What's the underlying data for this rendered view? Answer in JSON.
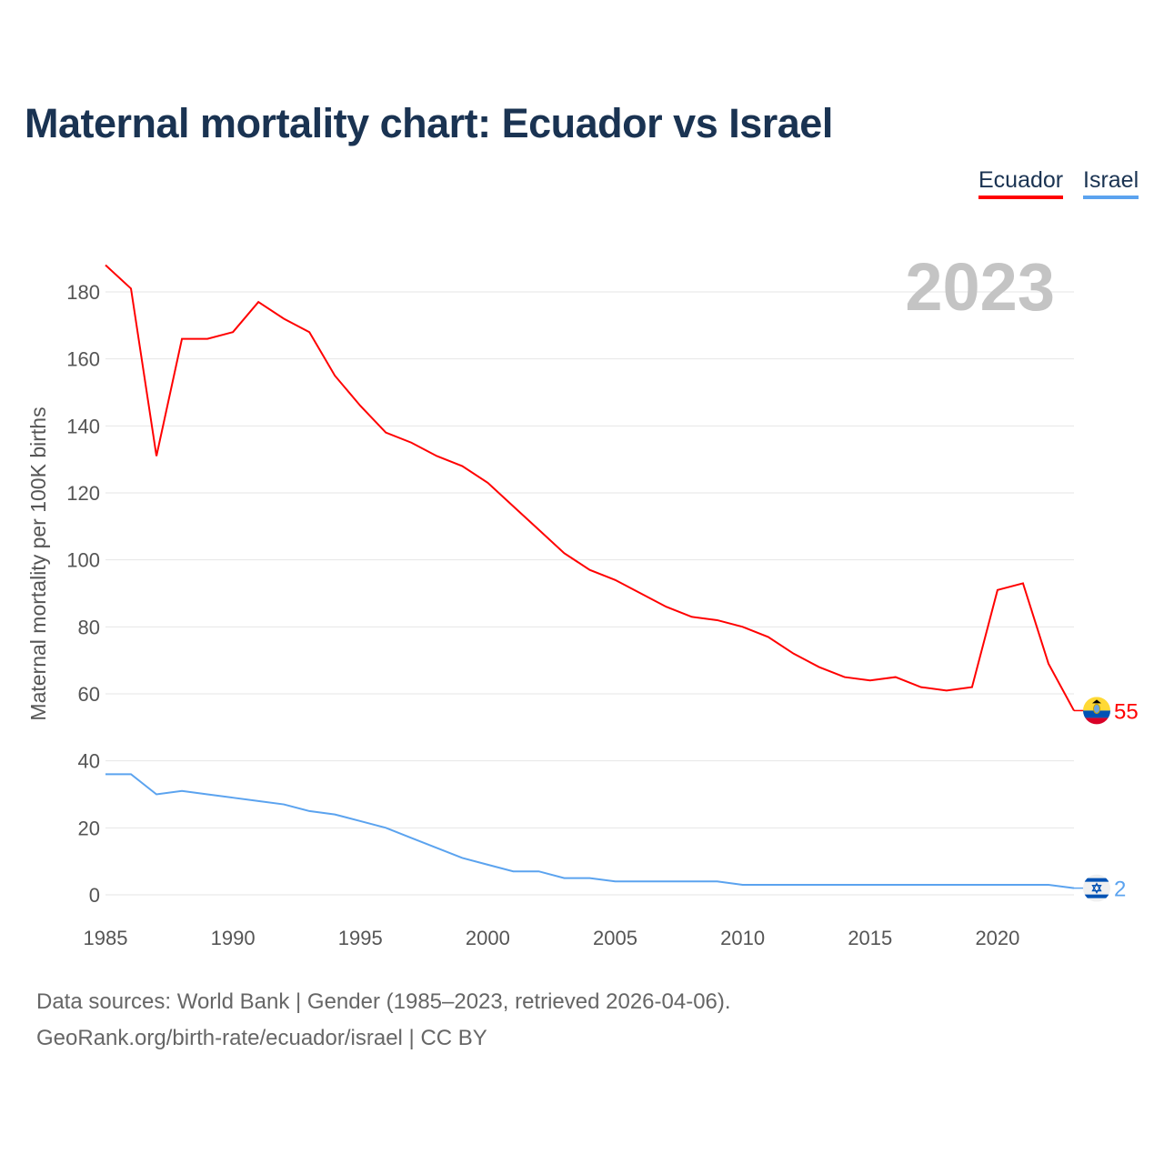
{
  "chart_data": {
    "type": "line",
    "title": "Maternal mortality chart: Ecuador vs Israel",
    "ylabel": "Maternal mortality per 100K births",
    "xlabel": "",
    "year_label": "2023",
    "xlim": [
      1985,
      2023
    ],
    "ylim": [
      0,
      190
    ],
    "x_ticks": [
      1985,
      1990,
      1995,
      2000,
      2005,
      2010,
      2015,
      2020
    ],
    "y_ticks": [
      0,
      20,
      40,
      60,
      80,
      100,
      120,
      140,
      160,
      180
    ],
    "grid": true,
    "legend": "top-right",
    "x": [
      1985,
      1986,
      1987,
      1988,
      1989,
      1990,
      1991,
      1992,
      1993,
      1994,
      1995,
      1996,
      1997,
      1998,
      1999,
      2000,
      2001,
      2002,
      2003,
      2004,
      2005,
      2006,
      2007,
      2008,
      2009,
      2010,
      2011,
      2012,
      2013,
      2014,
      2015,
      2016,
      2017,
      2018,
      2019,
      2020,
      2021,
      2022,
      2023
    ],
    "series": [
      {
        "name": "Ecuador",
        "color": "#ff0000",
        "end_label": "55",
        "flag": "ecuador-flag",
        "values": [
          188,
          181,
          131,
          166,
          166,
          168,
          177,
          172,
          168,
          155,
          146,
          138,
          135,
          131,
          128,
          123,
          116,
          109,
          102,
          97,
          94,
          90,
          86,
          83,
          82,
          80,
          77,
          72,
          68,
          65,
          64,
          65,
          62,
          61,
          62,
          91,
          93,
          69,
          55
        ]
      },
      {
        "name": "Israel",
        "color": "#5ba3ef",
        "end_label": "2",
        "flag": "israel-flag",
        "values": [
          36,
          36,
          30,
          31,
          30,
          29,
          28,
          27,
          25,
          24,
          22,
          20,
          17,
          14,
          11,
          9,
          7,
          7,
          5,
          5,
          4,
          4,
          4,
          4,
          4,
          3,
          3,
          3,
          3,
          3,
          3,
          3,
          3,
          3,
          3,
          3,
          3,
          3,
          2
        ]
      }
    ]
  },
  "footer": {
    "line1": "Data sources: World Bank | Gender (1985–2023, retrieved 2026-04-06).",
    "line2": "GeoRank.org/birth-rate/ecuador/israel | CC BY"
  }
}
